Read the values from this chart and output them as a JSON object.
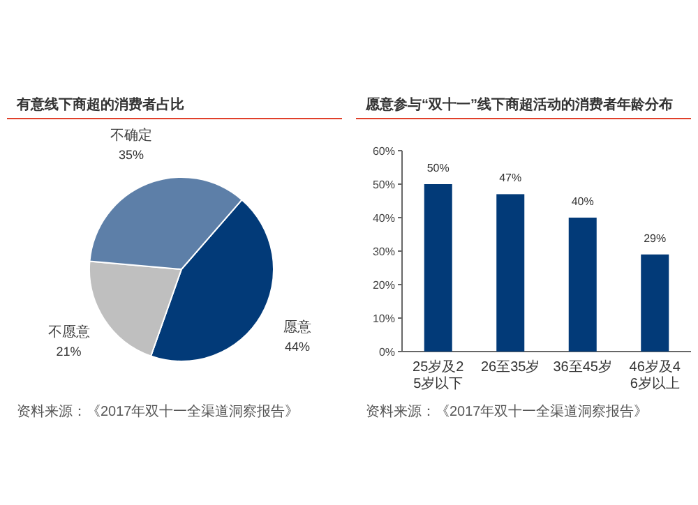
{
  "chart_data": [
    {
      "type": "pie",
      "title": "有意线下商超的消费者占比",
      "categories": [
        "愿意",
        "不愿意",
        "不确定"
      ],
      "values": [
        44,
        21,
        35
      ],
      "colors": [
        "#023a78",
        "#bfbfbf",
        "#5d7fa8"
      ],
      "value_labels": [
        "44%",
        "21%",
        "35%"
      ],
      "annotations": [
        "资料来源：《2017年双十一全渠道洞察报告》"
      ]
    },
    {
      "type": "bar",
      "title": "愿意参与“双十一”线下商超活动的消费者年龄分布",
      "categories": [
        "25岁及25岁以下",
        "26至35岁",
        "36至45岁",
        "46岁及46岁以上"
      ],
      "values": [
        50,
        47,
        40,
        29
      ],
      "color": "#023a78",
      "value_labels": [
        "50%",
        "47%",
        "40%",
        "29%"
      ],
      "ylim": [
        0,
        60
      ],
      "yticks": [
        {
          "value": 0,
          "label": "0%"
        },
        {
          "value": 10,
          "label": "10%"
        },
        {
          "value": 20,
          "label": "20%"
        },
        {
          "value": 30,
          "label": "30%"
        },
        {
          "value": 40,
          "label": "40%"
        },
        {
          "value": 50,
          "label": "50%"
        },
        {
          "value": 60,
          "label": "60%"
        }
      ],
      "grid": false,
      "annotations": [
        "资料来源：《2017年双十一全渠道洞察报告》"
      ]
    }
  ]
}
